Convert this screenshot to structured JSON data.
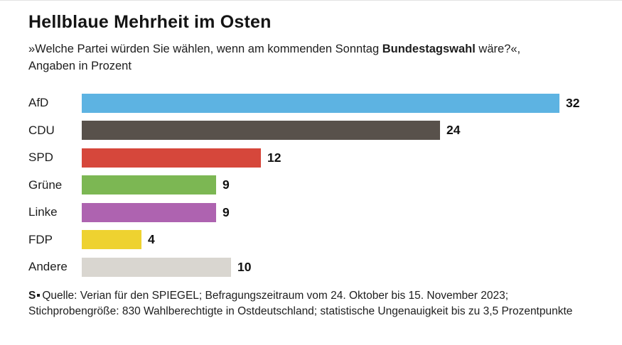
{
  "header": {
    "title": "Hellblaue Mehrheit im Osten",
    "subtitle_part1": "»Welche Partei würden Sie wählen, wenn am kommenden Sonntag ",
    "subtitle_bold": "Bundestagswahl",
    "subtitle_part2": " wäre?«, Angaben in Prozent"
  },
  "chart_data": {
    "type": "bar",
    "orientation": "horizontal",
    "title": "Hellblaue Mehrheit im Osten",
    "unit": "Prozent",
    "categories": [
      "AfD",
      "CDU",
      "SPD",
      "Grüne",
      "Linke",
      "FDP",
      "Andere"
    ],
    "values": [
      32,
      24,
      12,
      9,
      9,
      4,
      10
    ],
    "colors": [
      "#5db3e2",
      "#58514b",
      "#d6473b",
      "#7cb753",
      "#ae63b0",
      "#eed230",
      "#d9d6d0"
    ],
    "xlim": [
      0,
      32
    ],
    "grid": false,
    "legend": false,
    "value_labels": "end-of-bar"
  },
  "footer": {
    "logo": "S",
    "text": "Quelle: Verian für den SPIEGEL; Befragungszeitraum vom 24. Oktober bis 15. November 2023; Stichprobengröße: 830 Wahlberechtigte in Ostdeutschland; statistische Ungenauigkeit bis zu 3,5 Prozentpunkte"
  }
}
